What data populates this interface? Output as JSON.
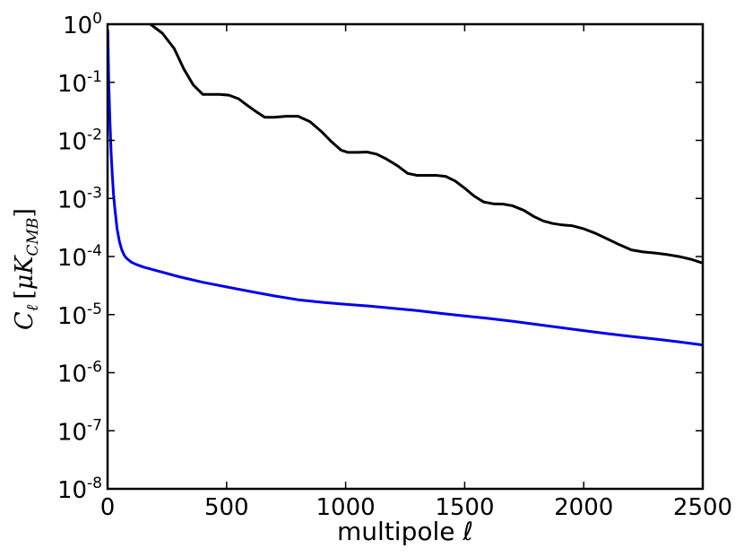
{
  "chart_data": {
    "type": "line",
    "title": "",
    "xlabel": "multipole ℓ",
    "ylabel": {
      "symbol": "C",
      "subscript": "ℓ",
      "bracket_open": "[",
      "unit_prefix": "μ",
      "unit": "K",
      "unit_subscript": "CMB",
      "bracket_close": "]"
    },
    "xlim": [
      0,
      2500
    ],
    "ylim": [
      1e-08,
      1
    ],
    "yscale": "log",
    "grid": false,
    "x_ticks": [
      {
        "value": 0,
        "label": "0"
      },
      {
        "value": 500,
        "label": "500"
      },
      {
        "value": 1000,
        "label": "1000"
      },
      {
        "value": 1500,
        "label": "1500"
      },
      {
        "value": 2000,
        "label": "2000"
      },
      {
        "value": 2500,
        "label": "2500"
      }
    ],
    "y_ticks": [
      {
        "value": 1,
        "base": "10",
        "exp": "0"
      },
      {
        "value": 0.1,
        "base": "10",
        "exp": "-1"
      },
      {
        "value": 0.01,
        "base": "10",
        "exp": "-2"
      },
      {
        "value": 0.001,
        "base": "10",
        "exp": "-3"
      },
      {
        "value": 0.0001,
        "base": "10",
        "exp": "-4"
      },
      {
        "value": 1e-05,
        "base": "10",
        "exp": "-5"
      },
      {
        "value": 1e-06,
        "base": "10",
        "exp": "-6"
      },
      {
        "value": 1e-07,
        "base": "10",
        "exp": "-7"
      },
      {
        "value": 1e-08,
        "base": "10",
        "exp": "-8"
      }
    ],
    "series": [
      {
        "color": "#000000",
        "x": [
          180,
          230,
          280,
          320,
          360,
          400,
          430,
          470,
          510,
          550,
          580,
          620,
          660,
          700,
          750,
          800,
          850,
          900,
          940,
          980,
          1010,
          1050,
          1090,
          1130,
          1170,
          1220,
          1260,
          1300,
          1340,
          1380,
          1420,
          1460,
          1500,
          1540,
          1580,
          1620,
          1660,
          1700,
          1750,
          1790,
          1830,
          1870,
          1910,
          1950,
          2000,
          2050,
          2100,
          2150,
          2200,
          2250,
          2300,
          2350,
          2400,
          2450,
          2500
        ],
        "y": [
          1.0,
          0.7,
          0.38,
          0.17,
          0.09,
          0.062,
          0.062,
          0.062,
          0.06,
          0.052,
          0.042,
          0.032,
          0.025,
          0.025,
          0.026,
          0.026,
          0.021,
          0.014,
          0.0095,
          0.0068,
          0.0062,
          0.0062,
          0.0063,
          0.0058,
          0.0048,
          0.0036,
          0.0027,
          0.0025,
          0.0025,
          0.0025,
          0.0024,
          0.002,
          0.0015,
          0.0011,
          0.00087,
          0.00081,
          0.0008,
          0.00075,
          0.00062,
          0.00049,
          0.00041,
          0.00037,
          0.00035,
          0.00034,
          0.0003,
          0.00025,
          0.0002,
          0.00016,
          0.00013,
          0.00012,
          0.000115,
          0.000108,
          0.0001,
          9e-05,
          7.7e-05
        ]
      },
      {
        "color": "#0000ee",
        "x": [
          1,
          5,
          10,
          15,
          20,
          25,
          30,
          40,
          50,
          60,
          70,
          80,
          100,
          120,
          150,
          200,
          300,
          400,
          500,
          600,
          700,
          800,
          900,
          1000,
          1100,
          1200,
          1300,
          1400,
          1500,
          1600,
          1700,
          1800,
          1900,
          2000,
          2100,
          2200,
          2300,
          2400,
          2500
        ],
        "y": [
          0.8,
          0.1,
          0.02,
          0.006,
          0.0025,
          0.0012,
          0.0007,
          0.0003,
          0.00018,
          0.00013,
          0.000105,
          9.3e-05,
          8e-05,
          7.3e-05,
          6.6e-05,
          5.8e-05,
          4.5e-05,
          3.6e-05,
          3e-05,
          2.5e-05,
          2.1e-05,
          1.8e-05,
          1.63e-05,
          1.5e-05,
          1.4e-05,
          1.28e-05,
          1.17e-05,
          1.05e-05,
          9.5e-06,
          8.6e-06,
          7.7e-06,
          6.8e-06,
          6e-06,
          5.3e-06,
          4.7e-06,
          4.2e-06,
          3.8e-06,
          3.4e-06,
          3e-06
        ]
      }
    ]
  }
}
